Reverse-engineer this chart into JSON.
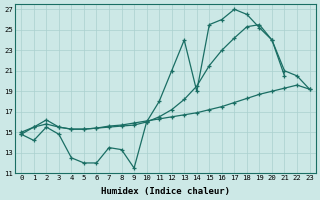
{
  "xlabel": "Humidex (Indice chaleur)",
  "bg_color": "#cce8e6",
  "grid_color": "#aad0ce",
  "line_color": "#1a6e64",
  "xlim": [
    -0.5,
    23.5
  ],
  "ylim": [
    11,
    27.5
  ],
  "xticks": [
    0,
    1,
    2,
    3,
    4,
    5,
    6,
    7,
    8,
    9,
    10,
    11,
    12,
    13,
    14,
    15,
    16,
    17,
    18,
    19,
    20,
    21,
    22,
    23
  ],
  "yticks": [
    11,
    13,
    15,
    17,
    19,
    21,
    23,
    25,
    27
  ],
  "series1_x": [
    0,
    1,
    2,
    3,
    4,
    5,
    6,
    7,
    8,
    9,
    10,
    11,
    12,
    13,
    14,
    15,
    16,
    17,
    18,
    19,
    20,
    21
  ],
  "series1_y": [
    14.8,
    14.2,
    15.5,
    14.8,
    12.5,
    12.0,
    12.0,
    13.5,
    13.3,
    11.5,
    16.0,
    18.0,
    21.0,
    24.0,
    19.0,
    25.5,
    26.0,
    27.0,
    26.5,
    25.2,
    24.0,
    20.5
  ],
  "series2_x": [
    0,
    1,
    2,
    3,
    4,
    5,
    6,
    7,
    8,
    9,
    10,
    11,
    12,
    13,
    14,
    15,
    16,
    17,
    18,
    19,
    20,
    21,
    22,
    23
  ],
  "series2_y": [
    15.0,
    15.5,
    16.2,
    15.5,
    15.3,
    15.3,
    15.4,
    15.5,
    15.6,
    15.7,
    16.0,
    16.5,
    17.2,
    18.2,
    19.5,
    21.5,
    23.0,
    24.2,
    25.3,
    25.5,
    24.0,
    21.0,
    20.5,
    19.2
  ],
  "series3_x": [
    0,
    1,
    2,
    3,
    4,
    5,
    6,
    7,
    8,
    9,
    10,
    11,
    12,
    13,
    14,
    15,
    16,
    17,
    18,
    19,
    20,
    21,
    22,
    23
  ],
  "series3_y": [
    14.8,
    15.5,
    15.8,
    15.5,
    15.3,
    15.3,
    15.4,
    15.6,
    15.7,
    15.9,
    16.1,
    16.3,
    16.5,
    16.7,
    16.9,
    17.2,
    17.5,
    17.9,
    18.3,
    18.7,
    19.0,
    19.3,
    19.6,
    19.2
  ]
}
